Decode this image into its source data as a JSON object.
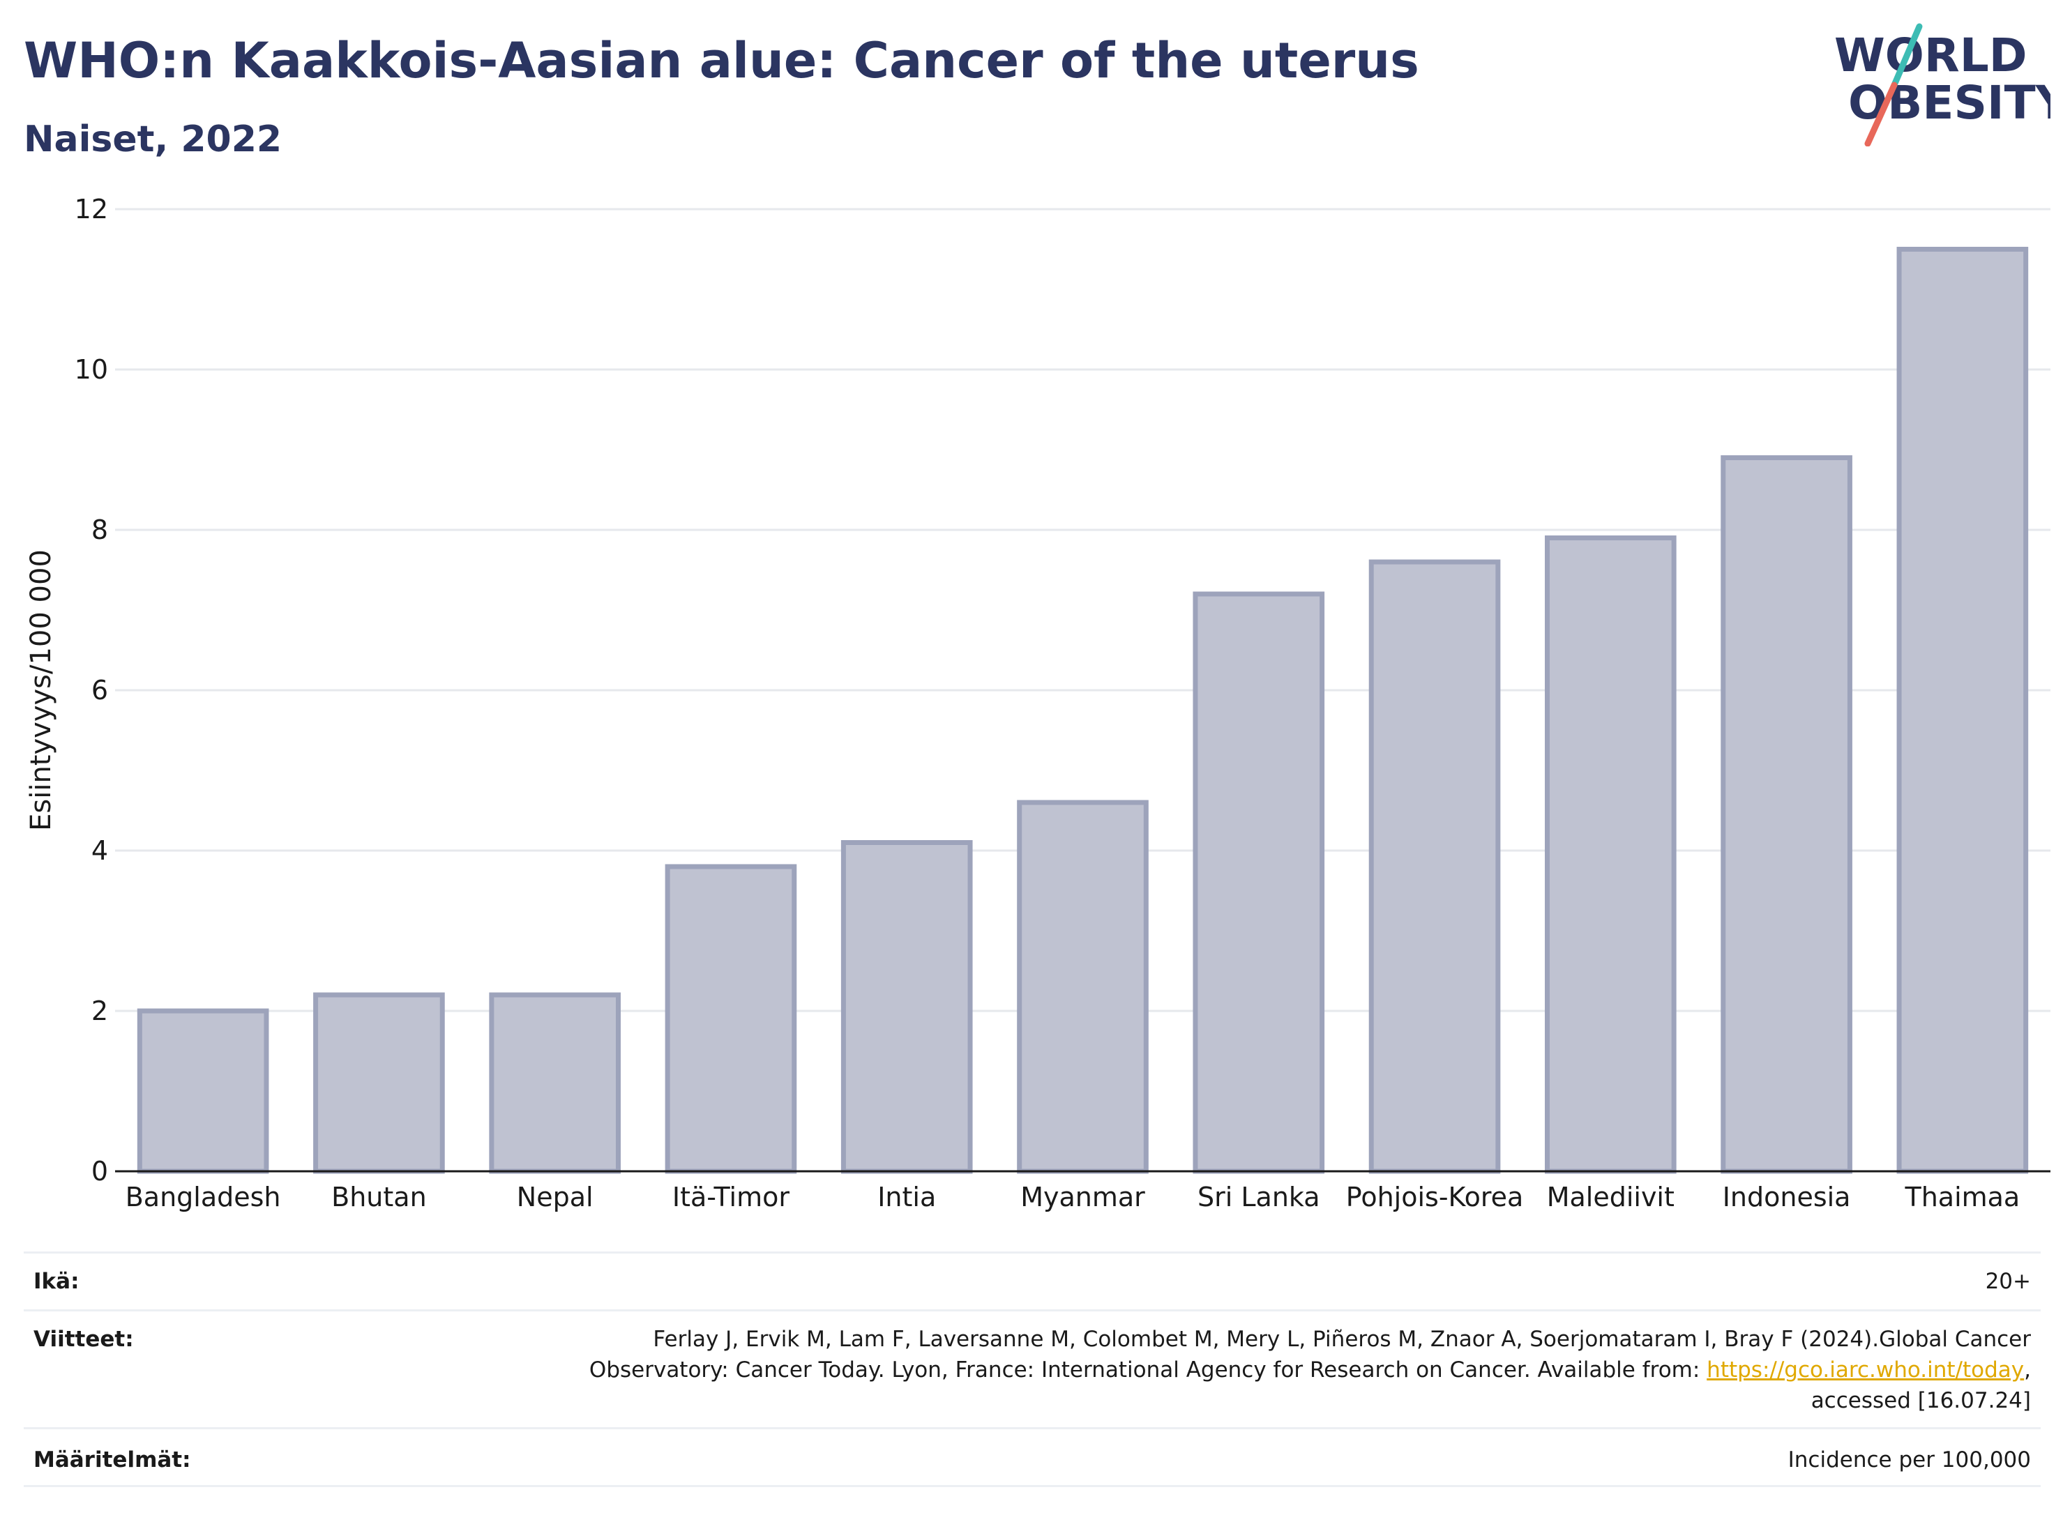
{
  "header": {
    "title": "WHO:n Kaakkois-Aasian alue: Cancer of the uterus",
    "subtitle": "Naiset, 2022"
  },
  "logo": {
    "line1": "WORLD",
    "line2": "OBESITY",
    "colors": {
      "text": "#2b3561",
      "slash_top": "#3dbcb4",
      "slash_bottom": "#e8685a"
    }
  },
  "chart_data": {
    "type": "bar",
    "categories": [
      "Bangladesh",
      "Bhutan",
      "Nepal",
      "Itä-Timor",
      "Intia",
      "Myanmar",
      "Sri Lanka",
      "Pohjois-Korea",
      "Malediivit",
      "Indonesia",
      "Thaimaa"
    ],
    "values": [
      2.0,
      2.2,
      2.2,
      3.8,
      4.1,
      4.6,
      7.2,
      7.6,
      7.9,
      8.9,
      11.5
    ],
    "ylabel": "Esiintyvyys/100 000",
    "xlabel": "",
    "ylim": [
      0,
      12
    ],
    "yticks": [
      0,
      2,
      4,
      6,
      8,
      10,
      12
    ],
    "grid": true,
    "bar_fill": "#bfc2d1",
    "bar_stroke": "#9da3bb"
  },
  "footer": {
    "age_label": "Ikä:",
    "age_value": "20+",
    "refs_label": "Viitteet:",
    "refs_line1": "Ferlay J, Ervik M, Lam F, Laversanne M, Colombet M, Mery L, Piñeros M, Znaor A, Soerjomataram I, Bray F (2024).Global Cancer",
    "refs_line2_pre": "Observatory: Cancer Today. Lyon, France: International Agency for Research on Cancer. Available from: ",
    "refs_link": "https://gco.iarc.who.int/today",
    "refs_line2_post": ",",
    "refs_line3": "accessed [16.07.24]",
    "defs_label": "Määritelmät:",
    "defs_value": "Incidence per 100,000"
  }
}
